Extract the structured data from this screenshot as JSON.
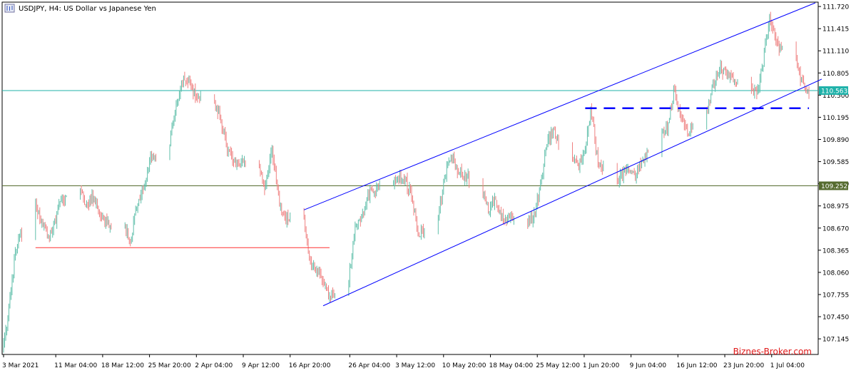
{
  "chart_data": {
    "type": "candlestick",
    "symbol_line": {
      "symbol": "USDJPY",
      "timeframe": "H4",
      "description": "US Dollar vs Japanese Yen"
    },
    "watermark": "Biznes-Broker.com",
    "ylim": [
      106.93,
      111.78
    ],
    "y_ticks": [
      "111.720",
      "111.415",
      "111.110",
      "110.805",
      "110.500",
      "110.195",
      "109.890",
      "109.585",
      "109.280",
      "108.975",
      "108.670",
      "108.365",
      "108.060",
      "107.755",
      "107.450",
      "107.145"
    ],
    "x_ticks": [
      "3 Mar 2021",
      "11 Mar 04:00",
      "18 Mar 12:00",
      "25 Mar 20:00",
      "2 Apr 04:00",
      "9 Apr 12:00",
      "16 Apr 20:00",
      "26 Apr 04:00",
      "3 May 12:00",
      "10 May 20:00",
      "18 May 04:00",
      "25 May 12:00",
      "1 Jun 20:00",
      "9 Jun 04:00",
      "16 Jun 12:00",
      "23 Jun 20:00",
      "1 Jul 04:00"
    ],
    "price_levels": [
      {
        "label": "110.563",
        "value": 110.563,
        "color": "#20b2aa"
      },
      {
        "label": "109.252",
        "value": 109.252,
        "color": "#556b2f"
      }
    ],
    "support_line": {
      "value": 108.4,
      "start": "8 Mar 2021",
      "end": "23 Apr 2021",
      "color": "#ff3030"
    },
    "dashed_level": {
      "value": 110.32,
      "start": "2 Jun 2021",
      "end": "7 Jul 2021",
      "color": "#0000ff"
    },
    "channel": {
      "color": "#0000ff",
      "upper": [
        {
          "x": "19 Apr 2021",
          "y": 108.92
        },
        {
          "x": "8 Jul 2021",
          "y": 111.77
        }
      ],
      "lower": [
        {
          "x": "22 Apr 2021",
          "y": 107.6
        },
        {
          "x": "9 Jul 2021",
          "y": 110.72
        }
      ]
    },
    "price_path": [
      {
        "x": "3 Mar 2021",
        "y": 107.0
      },
      {
        "x": "4 Mar 2021",
        "y": 107.6
      },
      {
        "x": "5 Mar 2021",
        "y": 108.4
      },
      {
        "x": "8 Mar 2021",
        "y": 109.0
      },
      {
        "x": "9 Mar 2021",
        "y": 108.8
      },
      {
        "x": "10 Mar 2021",
        "y": 108.5
      },
      {
        "x": "11 Mar 2021",
        "y": 108.7
      },
      {
        "x": "12 Mar 2021",
        "y": 109.05
      },
      {
        "x": "15 Mar 2021",
        "y": 109.25
      },
      {
        "x": "16 Mar 2021",
        "y": 109.0
      },
      {
        "x": "17 Mar 2021",
        "y": 109.1
      },
      {
        "x": "18 Mar 2021",
        "y": 108.85
      },
      {
        "x": "19 Mar 2021",
        "y": 108.75
      },
      {
        "x": "22 Mar 2021",
        "y": 108.7
      },
      {
        "x": "23 Mar 2021",
        "y": 108.5
      },
      {
        "x": "24 Mar 2021",
        "y": 109.0
      },
      {
        "x": "25 Mar 2021",
        "y": 109.2
      },
      {
        "x": "26 Mar 2021",
        "y": 109.6
      },
      {
        "x": "29 Mar 2021",
        "y": 109.8
      },
      {
        "x": "30 Mar 2021",
        "y": 110.3
      },
      {
        "x": "31 Mar 2021",
        "y": 110.7
      },
      {
        "x": "1 Apr 2021",
        "y": 110.7
      },
      {
        "x": "2 Apr 2021",
        "y": 110.5
      },
      {
        "x": "5 Apr 2021",
        "y": 110.4
      },
      {
        "x": "6 Apr 2021",
        "y": 110.2
      },
      {
        "x": "7 Apr 2021",
        "y": 109.8
      },
      {
        "x": "8 Apr 2021",
        "y": 109.6
      },
      {
        "x": "9 Apr 2021",
        "y": 109.6
      },
      {
        "x": "12 Apr 2021",
        "y": 109.5
      },
      {
        "x": "13 Apr 2021",
        "y": 109.2
      },
      {
        "x": "14 Apr 2021",
        "y": 109.8
      },
      {
        "x": "15 Apr 2021",
        "y": 109.1
      },
      {
        "x": "16 Apr 2021",
        "y": 108.8
      },
      {
        "x": "19 Apr 2021",
        "y": 108.8
      },
      {
        "x": "20 Apr 2021",
        "y": 108.2
      },
      {
        "x": "21 Apr 2021",
        "y": 108.1
      },
      {
        "x": "22 Apr 2021",
        "y": 108.0
      },
      {
        "x": "23 Apr 2021",
        "y": 107.7
      },
      {
        "x": "26 Apr 2021",
        "y": 107.9
      },
      {
        "x": "27 Apr 2021",
        "y": 108.6
      },
      {
        "x": "28 Apr 2021",
        "y": 108.8
      },
      {
        "x": "29 Apr 2021",
        "y": 109.1
      },
      {
        "x": "30 Apr 2021",
        "y": 109.2
      },
      {
        "x": "3 May 2021",
        "y": 109.3
      },
      {
        "x": "4 May 2021",
        "y": 109.4
      },
      {
        "x": "5 May 2021",
        "y": 109.3
      },
      {
        "x": "6 May 2021",
        "y": 109.1
      },
      {
        "x": "7 May 2021",
        "y": 108.6
      },
      {
        "x": "10 May 2021",
        "y": 108.8
      },
      {
        "x": "11 May 2021",
        "y": 109.3
      },
      {
        "x": "12 May 2021",
        "y": 109.7
      },
      {
        "x": "13 May 2021",
        "y": 109.5
      },
      {
        "x": "14 May 2021",
        "y": 109.4
      },
      {
        "x": "17 May 2021",
        "y": 109.2
      },
      {
        "x": "18 May 2021",
        "y": 108.9
      },
      {
        "x": "19 May 2021",
        "y": 109.1
      },
      {
        "x": "20 May 2021",
        "y": 108.8
      },
      {
        "x": "21 May 2021",
        "y": 108.8
      },
      {
        "x": "24 May 2021",
        "y": 108.75
      },
      {
        "x": "25 May 2021",
        "y": 108.8
      },
      {
        "x": "26 May 2021",
        "y": 109.2
      },
      {
        "x": "27 May 2021",
        "y": 109.8
      },
      {
        "x": "28 May 2021",
        "y": 110.0
      },
      {
        "x": "31 May 2021",
        "y": 109.6
      },
      {
        "x": "1 Jun 2021",
        "y": 109.5
      },
      {
        "x": "2 Jun 2021",
        "y": 109.75
      },
      {
        "x": "3 Jun 2021",
        "y": 110.3
      },
      {
        "x": "4 Jun 2021",
        "y": 109.6
      },
      {
        "x": "7 Jun 2021",
        "y": 109.3
      },
      {
        "x": "8 Jun 2021",
        "y": 109.4
      },
      {
        "x": "9 Jun 2021",
        "y": 109.45
      },
      {
        "x": "10 Jun 2021",
        "y": 109.4
      },
      {
        "x": "11 Jun 2021",
        "y": 109.6
      },
      {
        "x": "14 Jun 2021",
        "y": 110.0
      },
      {
        "x": "15 Jun 2021",
        "y": 110.05
      },
      {
        "x": "16 Jun 2021",
        "y": 110.6
      },
      {
        "x": "17 Jun 2021",
        "y": 110.2
      },
      {
        "x": "18 Jun 2021",
        "y": 110.0
      },
      {
        "x": "21 Jun 2021",
        "y": 110.2
      },
      {
        "x": "22 Jun 2021",
        "y": 110.6
      },
      {
        "x": "23 Jun 2021",
        "y": 110.9
      },
      {
        "x": "24 Jun 2021",
        "y": 110.8
      },
      {
        "x": "25 Jun 2021",
        "y": 110.75
      },
      {
        "x": "28 Jun 2021",
        "y": 110.6
      },
      {
        "x": "29 Jun 2021",
        "y": 110.5
      },
      {
        "x": "30 Jun 2021",
        "y": 111.0
      },
      {
        "x": "1 Jul 2021",
        "y": 111.6
      },
      {
        "x": "2 Jul 2021",
        "y": 111.2
      },
      {
        "x": "5 Jul 2021",
        "y": 110.95
      },
      {
        "x": "6 Jul 2021",
        "y": 110.7
      },
      {
        "x": "7 Jul 2021",
        "y": 110.5
      }
    ]
  }
}
